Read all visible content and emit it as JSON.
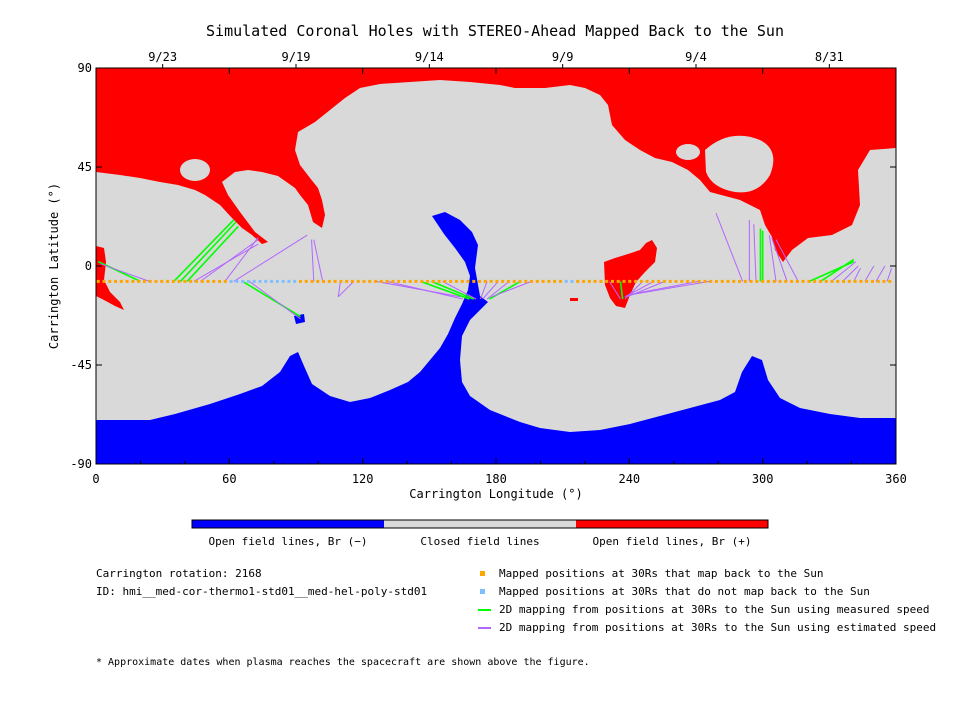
{
  "chart_data": {
    "type": "map",
    "title": "Simulated Coronal Holes with STEREO-Ahead Mapped Back to the Sun",
    "xlabel": "Carrington Longitude (°)",
    "ylabel": "Carrington Latitude (°)",
    "xlim": [
      0,
      360
    ],
    "ylim": [
      -90,
      90
    ],
    "x_ticks": [
      0,
      60,
      120,
      180,
      240,
      300,
      360
    ],
    "x_tick_labels": [
      "0",
      "60",
      "120",
      "180",
      "240",
      "300",
      "360"
    ],
    "y_ticks": [
      90,
      45,
      0,
      -45,
      -90
    ],
    "y_tick_labels": [
      "90",
      "45",
      "0",
      "-45",
      "-90"
    ],
    "top_axis_dates": [
      {
        "label": "9/23",
        "lon": 30
      },
      {
        "label": "9/19",
        "lon": 90
      },
      {
        "label": "9/14",
        "lon": 150
      },
      {
        "label": "9/9",
        "lon": 210
      },
      {
        "label": "9/4",
        "lon": 270
      },
      {
        "label": "8/31",
        "lon": 330
      }
    ],
    "colorbar": {
      "labels": [
        "Open field lines, Br (−)",
        "Closed field lines",
        "Open field lines, Br (+)"
      ],
      "colors": [
        "#0000ff",
        "#d9d9d9",
        "#ff0000"
      ]
    },
    "mapped_latitude": -7,
    "blue_point_ranges": [
      [
        60,
        90
      ],
      [
        210,
        215
      ]
    ],
    "mappings": [
      {
        "from": [
          20,
          -7
        ],
        "to": [
          1,
          2
        ],
        "kind": "green"
      },
      {
        "from": [
          24,
          -7
        ],
        "to": [
          2,
          1
        ],
        "kind": "purple"
      },
      {
        "from": [
          35,
          -7
        ],
        "to": [
          62,
          21
        ],
        "kind": "green"
      },
      {
        "from": [
          38,
          -7
        ],
        "to": [
          63,
          20
        ],
        "kind": "green"
      },
      {
        "from": [
          41,
          -7
        ],
        "to": [
          64,
          18
        ],
        "kind": "green"
      },
      {
        "from": [
          44,
          -7
        ],
        "to": [
          73,
          10
        ],
        "kind": "purple"
      },
      {
        "from": [
          47,
          -7
        ],
        "to": [
          73,
          12
        ],
        "kind": "purple"
      },
      {
        "from": [
          58,
          -7
        ],
        "to": [
          73,
          13
        ],
        "kind": "purple"
      },
      {
        "from": [
          66,
          -7
        ],
        "to": [
          92,
          -23
        ],
        "kind": "green"
      },
      {
        "from": [
          69,
          -7
        ],
        "to": [
          92,
          -24
        ],
        "kind": "purple"
      },
      {
        "from": [
          62,
          -7
        ],
        "to": [
          95,
          14
        ],
        "kind": "purple"
      },
      {
        "from": [
          98,
          -7
        ],
        "to": [
          97,
          12
        ],
        "kind": "purple"
      },
      {
        "from": [
          102,
          -7
        ],
        "to": [
          98,
          12
        ],
        "kind": "purple"
      },
      {
        "from": [
          110,
          -7
        ],
        "to": [
          109,
          -14
        ],
        "kind": "purple"
      },
      {
        "from": [
          116,
          -7
        ],
        "to": [
          109,
          -14
        ],
        "kind": "purple"
      },
      {
        "from": [
          126,
          -7
        ],
        "to": [
          164,
          -14
        ],
        "kind": "purple"
      },
      {
        "from": [
          131,
          -7
        ],
        "to": [
          165,
          -15
        ],
        "kind": "purple"
      },
      {
        "from": [
          146,
          -7
        ],
        "to": [
          168,
          -15
        ],
        "kind": "green"
      },
      {
        "from": [
          151,
          -7
        ],
        "to": [
          170,
          -15
        ],
        "kind": "green"
      },
      {
        "from": [
          156,
          -7
        ],
        "to": [
          171,
          -15
        ],
        "kind": "purple"
      },
      {
        "from": [
          176,
          -7
        ],
        "to": [
          173,
          -15
        ],
        "kind": "purple"
      },
      {
        "from": [
          181,
          -7
        ],
        "to": [
          174,
          -15
        ],
        "kind": "purple"
      },
      {
        "from": [
          186,
          -7
        ],
        "to": [
          176,
          -15
        ],
        "kind": "purple"
      },
      {
        "from": [
          191,
          -7
        ],
        "to": [
          177,
          -15
        ],
        "kind": "green"
      },
      {
        "from": [
          196,
          -7
        ],
        "to": [
          178,
          -14
        ],
        "kind": "purple"
      },
      {
        "from": [
          231,
          -7
        ],
        "to": [
          236,
          -15
        ],
        "kind": "purple"
      },
      {
        "from": [
          236,
          -7
        ],
        "to": [
          237,
          -15
        ],
        "kind": "green"
      },
      {
        "from": [
          246,
          -7
        ],
        "to": [
          238,
          -15
        ],
        "kind": "purple"
      },
      {
        "from": [
          251,
          -7
        ],
        "to": [
          238,
          -14
        ],
        "kind": "purple"
      },
      {
        "from": [
          256,
          -7
        ],
        "to": [
          239,
          -14
        ],
        "kind": "purple"
      },
      {
        "from": [
          271,
          -7
        ],
        "to": [
          240,
          -13
        ],
        "kind": "purple"
      },
      {
        "from": [
          276,
          -7
        ],
        "to": [
          241,
          -13
        ],
        "kind": "purple"
      },
      {
        "from": [
          291,
          -7
        ],
        "to": [
          279,
          24
        ],
        "kind": "purple"
      },
      {
        "from": [
          294,
          -7
        ],
        "to": [
          294,
          21
        ],
        "kind": "purple"
      },
      {
        "from": [
          297,
          -7
        ],
        "to": [
          296,
          19
        ],
        "kind": "purple"
      },
      {
        "from": [
          299,
          -7
        ],
        "to": [
          299,
          17
        ],
        "kind": "green"
      },
      {
        "from": [
          300,
          -7
        ],
        "to": [
          300,
          16
        ],
        "kind": "green"
      },
      {
        "from": [
          306,
          -7
        ],
        "to": [
          303,
          14
        ],
        "kind": "purple"
      },
      {
        "from": [
          311,
          -7
        ],
        "to": [
          304,
          13
        ],
        "kind": "purple"
      },
      {
        "from": [
          316,
          -7
        ],
        "to": [
          306,
          12
        ],
        "kind": "purple"
      },
      {
        "from": [
          321,
          -7
        ],
        "to": [
          341,
          2
        ],
        "kind": "green"
      },
      {
        "from": [
          326,
          -7
        ],
        "to": [
          341,
          3
        ],
        "kind": "green"
      },
      {
        "from": [
          331,
          -7
        ],
        "to": [
          342,
          2
        ],
        "kind": "purple"
      },
      {
        "from": [
          336,
          -7
        ],
        "to": [
          343,
          0
        ],
        "kind": "purple"
      },
      {
        "from": [
          341,
          -7
        ],
        "to": [
          344,
          -1
        ],
        "kind": "purple"
      },
      {
        "from": [
          346,
          -7
        ],
        "to": [
          350,
          0
        ],
        "kind": "purple"
      },
      {
        "from": [
          351,
          -7
        ],
        "to": [
          355,
          0
        ],
        "kind": "purple"
      },
      {
        "from": [
          356,
          -7
        ],
        "to": [
          358,
          -1
        ],
        "kind": "purple"
      }
    ]
  },
  "legend": {
    "items": [
      {
        "label": "Mapped positions at 30Rs that map back to the Sun",
        "color": "#ffa500",
        "kind": "square"
      },
      {
        "label": "Mapped positions at 30Rs that do not map back to the Sun",
        "color": "#7fbfff",
        "kind": "square"
      },
      {
        "label": "2D mapping from positions at 30Rs to the Sun using measured speed",
        "color": "#00ff00",
        "kind": "line"
      },
      {
        "label": "2D mapping from positions at 30Rs to the Sun using estimated speed",
        "color": "#b266ff",
        "kind": "line"
      }
    ]
  },
  "meta": {
    "rotation": "Carrington rotation: 2168",
    "id": "ID: hmi__med-cor-thermo1-std01__med-hel-poly-std01"
  },
  "footnote": "* Approximate dates when plasma reaches the spacecraft are shown above the figure."
}
